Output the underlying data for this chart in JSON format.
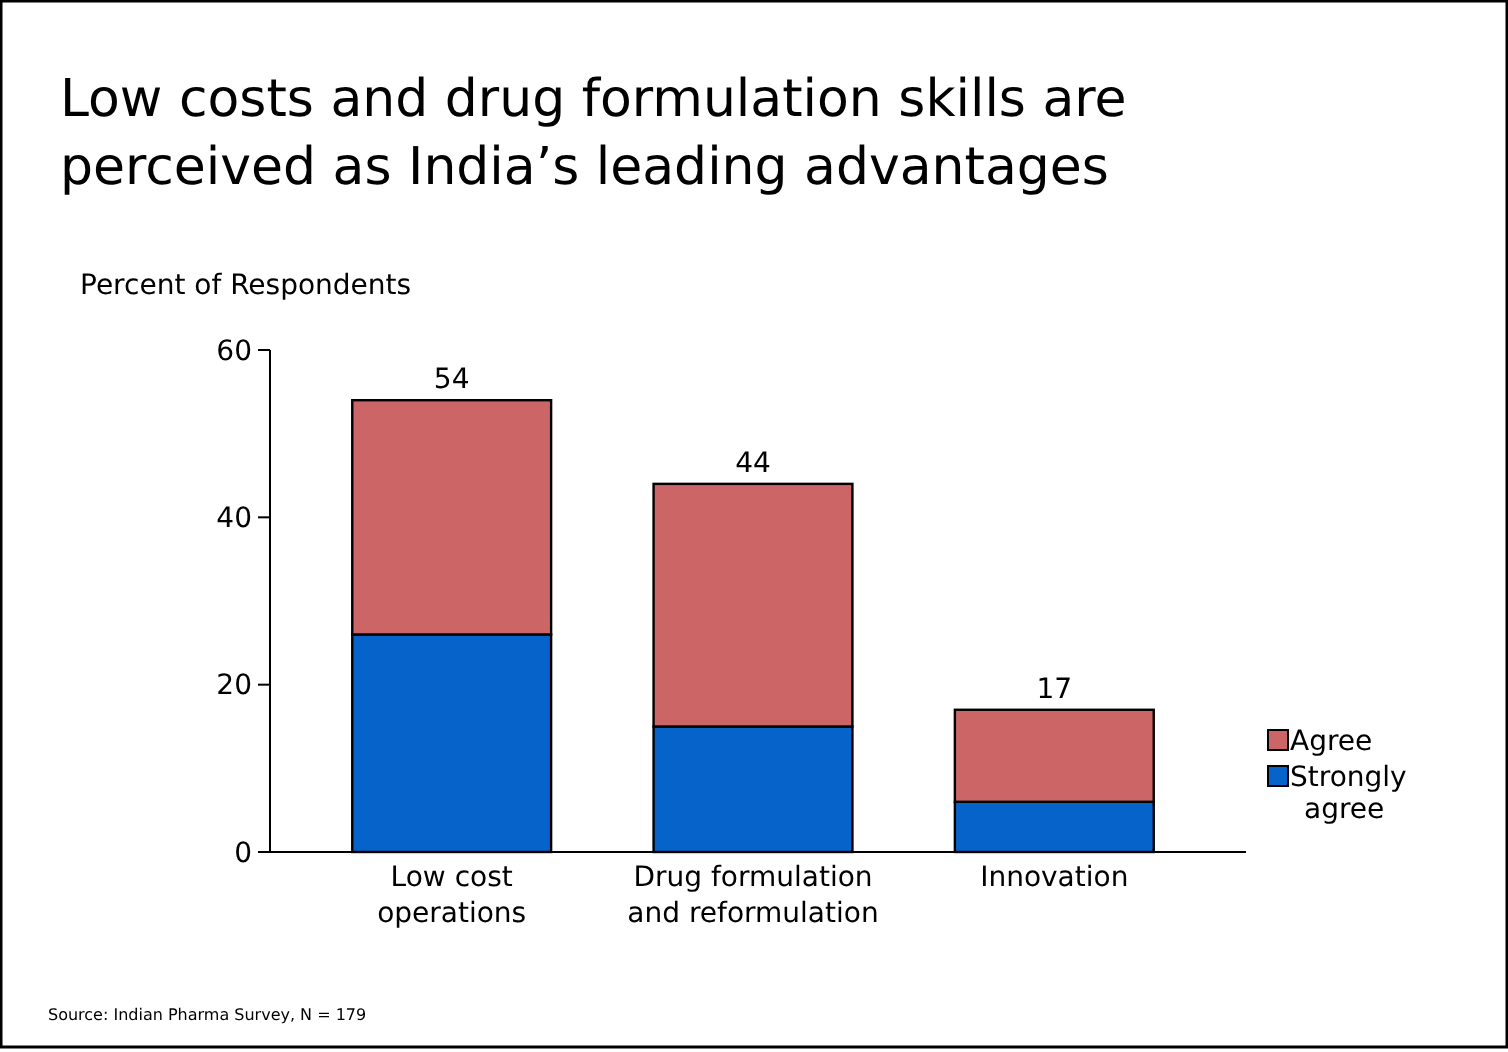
{
  "chart_data": {
    "type": "bar",
    "title": "Low costs and drug formulation skills are perceived as India’s leading advantages",
    "ylabel": "Percent of Respondents",
    "categories": [
      "Low cost operations",
      "Drug formulation and reformulation",
      "Innovation"
    ],
    "series": [
      {
        "name": "Strongly agree",
        "color": "#0563c9",
        "values": [
          26,
          15,
          6
        ]
      },
      {
        "name": "Agree",
        "color": "#cc6666",
        "values": [
          28,
          29,
          11
        ]
      }
    ],
    "stacked": true,
    "totals": [
      "54",
      "44",
      "17"
    ],
    "ylim": [
      0,
      60
    ],
    "yticks": [
      0,
      20,
      40,
      60
    ],
    "legend": "right",
    "annotations": [
      "Source: Indian Pharma Survey, N = 179"
    ]
  }
}
